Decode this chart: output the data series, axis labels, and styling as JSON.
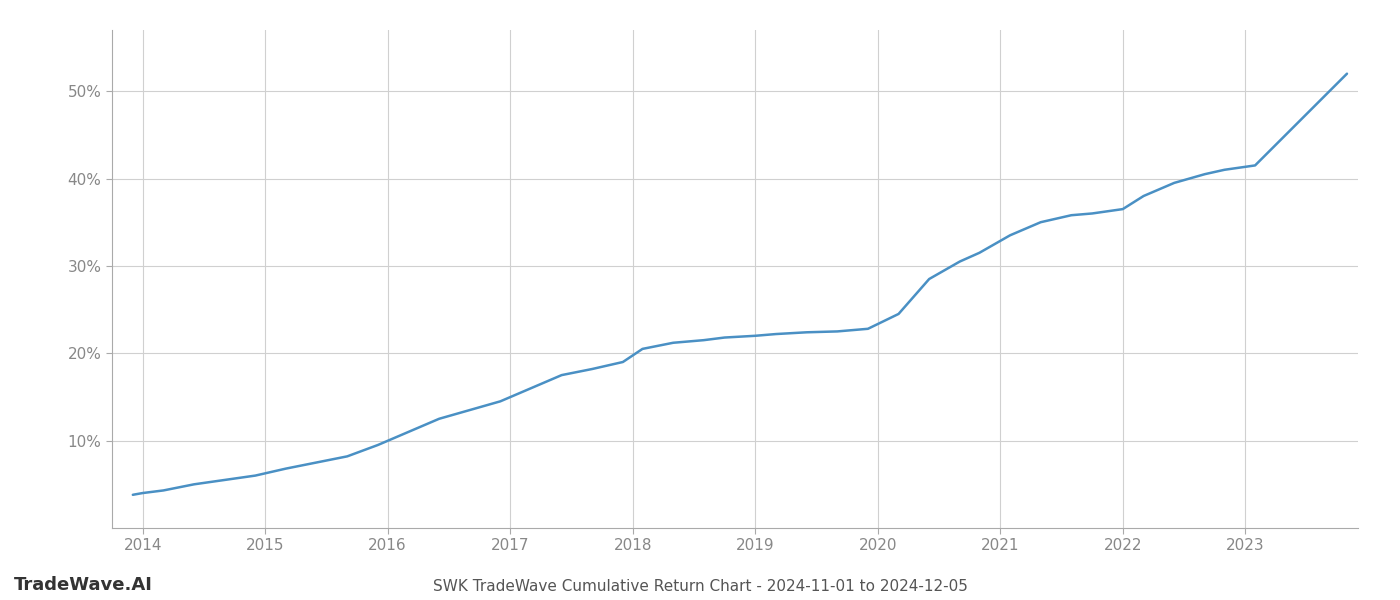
{
  "title": "SWK TradeWave Cumulative Return Chart - 2024-11-01 to 2024-12-05",
  "watermark": "TradeWave.AI",
  "line_color": "#4a90c4",
  "background_color": "#ffffff",
  "grid_color": "#d0d0d0",
  "x_values": [
    2013.92,
    2014.0,
    2014.17,
    2014.42,
    2014.67,
    2014.92,
    2015.17,
    2015.42,
    2015.67,
    2015.92,
    2016.17,
    2016.42,
    2016.67,
    2016.92,
    2017.17,
    2017.42,
    2017.67,
    2017.92,
    2018.08,
    2018.33,
    2018.58,
    2018.75,
    2019.0,
    2019.17,
    2019.42,
    2019.67,
    2019.92,
    2020.17,
    2020.42,
    2020.67,
    2020.83,
    2021.08,
    2021.33,
    2021.58,
    2021.75,
    2022.0,
    2022.17,
    2022.42,
    2022.67,
    2022.83,
    2023.08,
    2023.83
  ],
  "y_values": [
    3.8,
    4.0,
    4.3,
    5.0,
    5.5,
    6.0,
    6.8,
    7.5,
    8.2,
    9.5,
    11.0,
    12.5,
    13.5,
    14.5,
    16.0,
    17.5,
    18.2,
    19.0,
    20.5,
    21.2,
    21.5,
    21.8,
    22.0,
    22.2,
    22.4,
    22.5,
    22.8,
    24.5,
    28.5,
    30.5,
    31.5,
    33.5,
    35.0,
    35.8,
    36.0,
    36.5,
    38.0,
    39.5,
    40.5,
    41.0,
    41.5,
    52.0
  ],
  "yticks": [
    10,
    20,
    30,
    40,
    50
  ],
  "ytick_labels": [
    "10%",
    "20%",
    "30%",
    "40%",
    "50%"
  ],
  "xticks": [
    2014,
    2015,
    2016,
    2017,
    2018,
    2019,
    2020,
    2021,
    2022,
    2023
  ],
  "xlim": [
    2013.75,
    2023.92
  ],
  "ylim": [
    0,
    57
  ],
  "line_width": 1.8,
  "title_fontsize": 11,
  "tick_fontsize": 11,
  "watermark_fontsize": 13
}
